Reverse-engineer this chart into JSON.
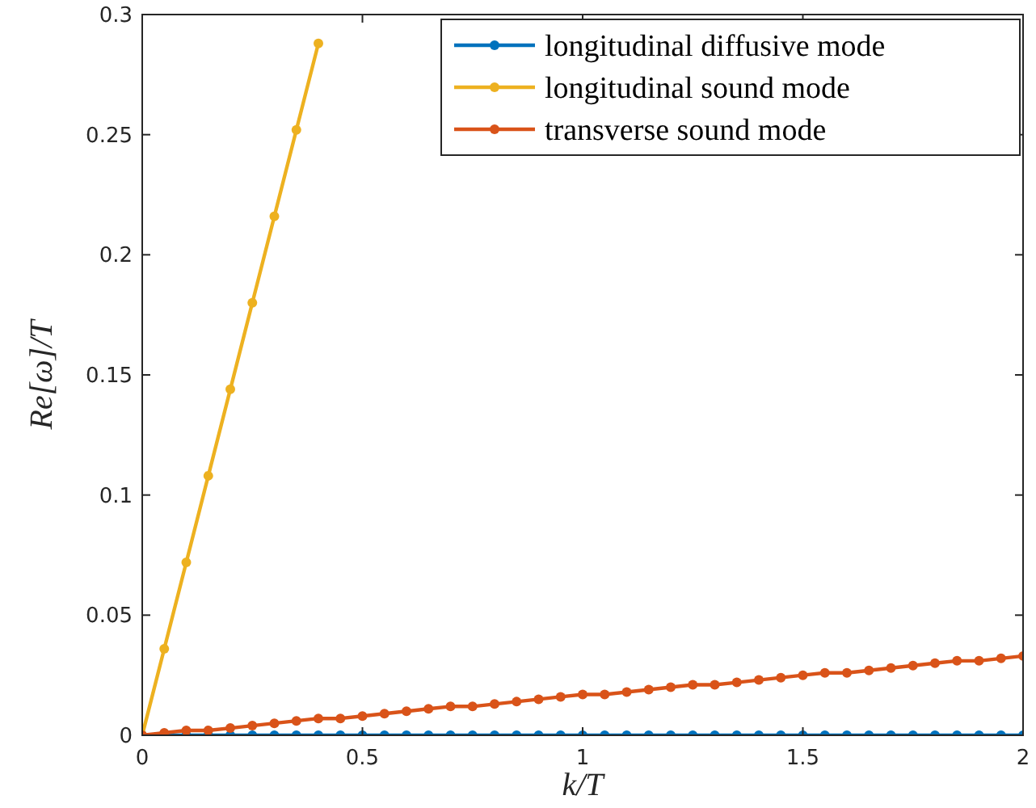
{
  "chart_data": {
    "type": "line",
    "xlabel": "k/T",
    "ylabel": "Re[ω]/T",
    "x": [
      0,
      0.05,
      0.1,
      0.15,
      0.2,
      0.25,
      0.3,
      0.35,
      0.4,
      0.45,
      0.5,
      0.55,
      0.6,
      0.65,
      0.7,
      0.75,
      0.8,
      0.85,
      0.9,
      0.95,
      1,
      1.05,
      1.1,
      1.15,
      1.2,
      1.25,
      1.3,
      1.35,
      1.4,
      1.45,
      1.5,
      1.55,
      1.6,
      1.65,
      1.7,
      1.75,
      1.8,
      1.85,
      1.9,
      1.95,
      2
    ],
    "series": [
      {
        "name": "longitudinal diffusive mode",
        "color": "#0072bd",
        "values": [
          0,
          0,
          0,
          0,
          0,
          0,
          0,
          0,
          0,
          0,
          0,
          0,
          0,
          0,
          0,
          0,
          0,
          0,
          0,
          0,
          0,
          0,
          0,
          0,
          0,
          0,
          0,
          0,
          0,
          0,
          0,
          0,
          0,
          0,
          0,
          0,
          0,
          0,
          0,
          0,
          0
        ]
      },
      {
        "name": "longitudinal sound mode",
        "color": "#edb120",
        "x": [
          0,
          0.05,
          0.1,
          0.15,
          0.2,
          0.25,
          0.3,
          0.35,
          0.4
        ],
        "values": [
          0,
          0.036,
          0.072,
          0.108,
          0.144,
          0.18,
          0.216,
          0.252,
          0.288
        ]
      },
      {
        "name": "transverse sound mode",
        "color": "#d95319",
        "values": [
          0,
          0.001,
          0.002,
          0.002,
          0.003,
          0.004,
          0.005,
          0.006,
          0.007,
          0.007,
          0.008,
          0.009,
          0.01,
          0.011,
          0.012,
          0.012,
          0.013,
          0.014,
          0.015,
          0.016,
          0.017,
          0.017,
          0.018,
          0.019,
          0.02,
          0.021,
          0.021,
          0.022,
          0.023,
          0.024,
          0.025,
          0.026,
          0.026,
          0.027,
          0.028,
          0.029,
          0.03,
          0.031,
          0.031,
          0.032,
          0.033
        ]
      }
    ],
    "xlim": [
      0,
      2
    ],
    "xticks": [
      0,
      0.5,
      1,
      1.5,
      2
    ],
    "ylim": [
      0,
      0.3
    ],
    "yticks": [
      0,
      0.05,
      0.1,
      0.15,
      0.2,
      0.25,
      0.3
    ],
    "grid": false,
    "legend": "top right",
    "marker": "circle",
    "line_style": "solid"
  }
}
